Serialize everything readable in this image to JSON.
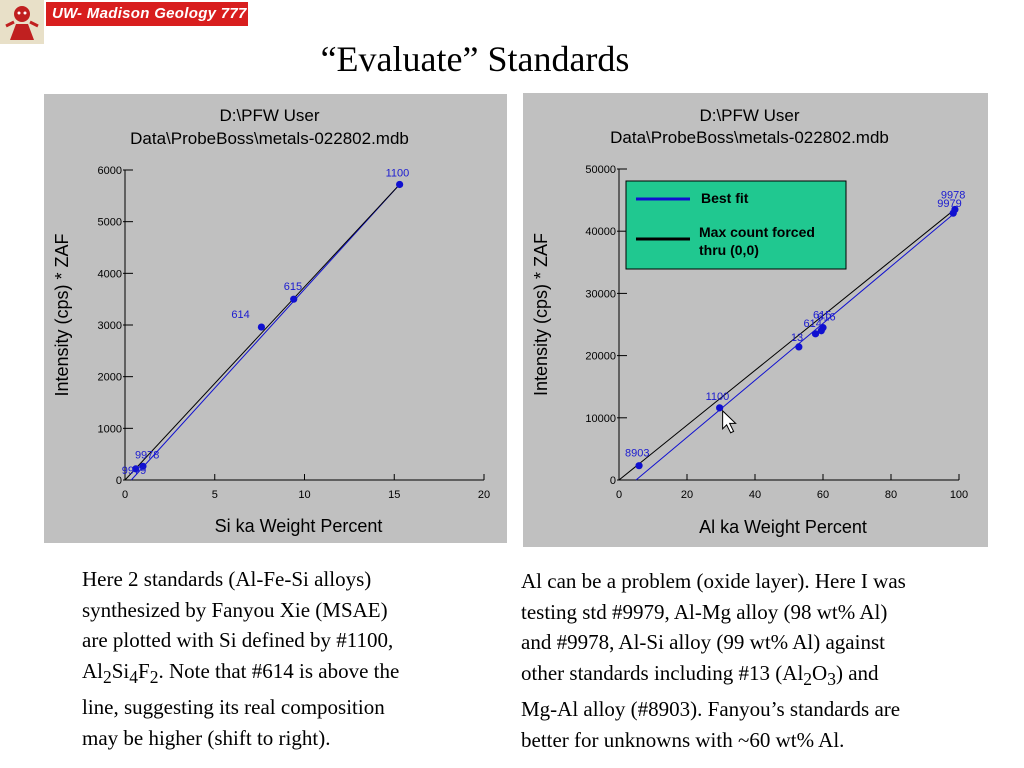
{
  "logo": {
    "text": "UW- Madison Geology  777"
  },
  "title": "“Evaluate” Standards",
  "colors": {
    "panel_bg": "#c0c0c0",
    "best_fit": "#1010d0",
    "forced_fit": "#000000",
    "legend_bg": "#20c890",
    "point_label": "#1a1ad0"
  },
  "chart_data": [
    {
      "type": "scatter",
      "title_line1": "D:\\PFW User",
      "title_line2": "Data\\ProbeBoss\\metals-022802.mdb",
      "xlabel": "Si ka Weight Percent",
      "ylabel": "Intensity (cps) * ZAF",
      "xlim": [
        0,
        20
      ],
      "ylim": [
        0,
        6000
      ],
      "xticks": [
        "0",
        "5",
        "10",
        "15",
        "20"
      ],
      "yticks": [
        "0",
        "1000",
        "2000",
        "3000",
        "4000",
        "5000",
        "6000"
      ],
      "points": [
        {
          "label": "1100",
          "x": 15.3,
          "y": 5720
        },
        {
          "label": "615",
          "x": 9.4,
          "y": 3500
        },
        {
          "label": "614",
          "x": 7.6,
          "y": 2960
        },
        {
          "label": "9978",
          "x": 1.0,
          "y": 265
        },
        {
          "label": "9979",
          "x": 0.6,
          "y": 215
        }
      ],
      "lines": [
        {
          "name": "best fit",
          "x": [
            0.35,
            15.3
          ],
          "y": [
            0,
            5720
          ]
        },
        {
          "name": "forced",
          "x": [
            0,
            15.3
          ],
          "y": [
            0,
            5720
          ]
        }
      ]
    },
    {
      "type": "scatter",
      "title_line1": "D:\\PFW User",
      "title_line2": "Data\\ProbeBoss\\metals-022802.mdb",
      "xlabel": "Al ka Weight Percent",
      "ylabel": "Intensity (cps) * ZAF",
      "xlim": [
        0,
        100
      ],
      "ylim": [
        0,
        50000
      ],
      "xticks": [
        "0",
        "20",
        "40",
        "60",
        "80",
        "100"
      ],
      "yticks": [
        "0",
        "10000",
        "20000",
        "30000",
        "40000",
        "50000"
      ],
      "legend": {
        "position": "top-center",
        "entries": [
          {
            "name": "Best fit",
            "color": "#1010d0"
          },
          {
            "name_line1": "Max count forced",
            "name_line2": "thru (0,0)",
            "color": "#000000"
          }
        ]
      },
      "points": [
        {
          "label": "9978",
          "x": 98.8,
          "y": 43500
        },
        {
          "label": "9979",
          "x": 98.3,
          "y": 42900
        },
        {
          "label": "615",
          "x": 60.0,
          "y": 24500
        },
        {
          "label": "616",
          "x": 59.5,
          "y": 24000
        },
        {
          "label": "614",
          "x": 57.8,
          "y": 23500
        },
        {
          "label": "13",
          "x": 52.9,
          "y": 21400
        },
        {
          "label": "1100",
          "x": 29.6,
          "y": 11600
        },
        {
          "label": "8903",
          "x": 5.9,
          "y": 2300
        }
      ],
      "lines": [
        {
          "name": "best fit",
          "x": [
            5.0,
            98.5
          ],
          "y": [
            0,
            42800
          ]
        },
        {
          "name": "forced",
          "x": [
            0,
            98.5
          ],
          "y": [
            0,
            43400
          ]
        }
      ]
    }
  ],
  "captions": {
    "left": [
      "Here 2 standards (Al-Fe-Si alloys)",
      "synthesized by Fanyou Xie (MSAE)",
      "are plotted with Si defined by #1100,",
      "Al<sub>2</sub>Si<sub>4</sub>F<sub>2</sub>. Note that #614 is above the",
      "line, suggesting its real composition",
      "may be higher (shift to right)."
    ],
    "right": [
      "Al can be a problem (oxide layer). Here I was",
      "testing std #9979, Al-Mg alloy (98 wt% Al)",
      "and #9978, Al-Si alloy (99 wt% Al) against",
      "other standards including #13 (Al<sub>2</sub>O<sub>3</sub>) and",
      "Mg-Al alloy (#8903).  Fanyou’s standards are",
      "better for unknowns with ~60 wt% Al."
    ]
  }
}
